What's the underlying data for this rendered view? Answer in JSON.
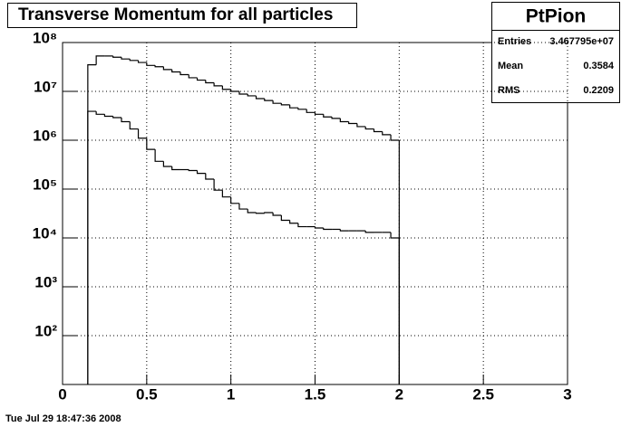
{
  "chart_data": {
    "type": "histogram",
    "title": "Transverse Momentum for all particles",
    "log_y": true,
    "grid": true,
    "bins": [
      0.15,
      0.2,
      0.25,
      0.3,
      0.35,
      0.4,
      0.45,
      0.5,
      0.55,
      0.6,
      0.65,
      0.7,
      0.75,
      0.8,
      0.85,
      0.9,
      0.95,
      1.0,
      1.05,
      1.1,
      1.15,
      1.2,
      1.25,
      1.3,
      1.35,
      1.4,
      1.45,
      1.5,
      1.55,
      1.6,
      1.65,
      1.7,
      1.75,
      1.8,
      1.85,
      1.9,
      1.95,
      2.0
    ],
    "series": [
      {
        "color": "#000000",
        "values": [
          35000000,
          53000000,
          53000000,
          50000000,
          46000000,
          43000000,
          39000000,
          34000000,
          32000000,
          28000000,
          25000000,
          22000000,
          19000000,
          17000000,
          15000000,
          13000000,
          11000000,
          10000000,
          8800000,
          8100000,
          7100000,
          6500000,
          5700000,
          5300000,
          4600000,
          4300000,
          3700000,
          3400000,
          3000000,
          2800000,
          2400000,
          2200000,
          1900000,
          1700000,
          1500000,
          1300000,
          1000000
        ]
      },
      {
        "color": "#000000",
        "values": [
          3900000,
          3400000,
          3100000,
          2900000,
          2400000,
          1700000,
          1100000,
          650000,
          370000,
          290000,
          250000,
          250000,
          240000,
          210000,
          160000,
          95000,
          69000,
          51000,
          39000,
          33000,
          32000,
          33000,
          29000,
          23000,
          20000,
          17000,
          17000,
          16000,
          15000,
          15000,
          14000,
          14000,
          14000,
          13000,
          13000,
          13000,
          10000
        ]
      }
    ],
    "xlim": [
      0,
      3
    ],
    "xticks": [
      0,
      0.5,
      1,
      1.5,
      2,
      2.5,
      3
    ],
    "ylim": [
      10,
      100000000
    ],
    "yticks": [
      {
        "value": 100,
        "label": "10²"
      },
      {
        "value": 1000,
        "label": "10³"
      },
      {
        "value": 10000,
        "label": "10⁴"
      },
      {
        "value": 100000,
        "label": "10⁵"
      },
      {
        "value": 1000000,
        "label": "10⁶"
      },
      {
        "value": 10000000,
        "label": "10⁷"
      },
      {
        "value": 100000000,
        "label": "10⁸"
      }
    ],
    "stats": {
      "title": "PtPion",
      "rows": [
        {
          "label": "Entries",
          "value": "3.467795e+07"
        },
        {
          "label": "Mean",
          "value": "0.3584"
        },
        {
          "label": "RMS",
          "value": "0.2209"
        }
      ]
    },
    "footer": "Tue Jul 29 18:47:36 2008"
  }
}
